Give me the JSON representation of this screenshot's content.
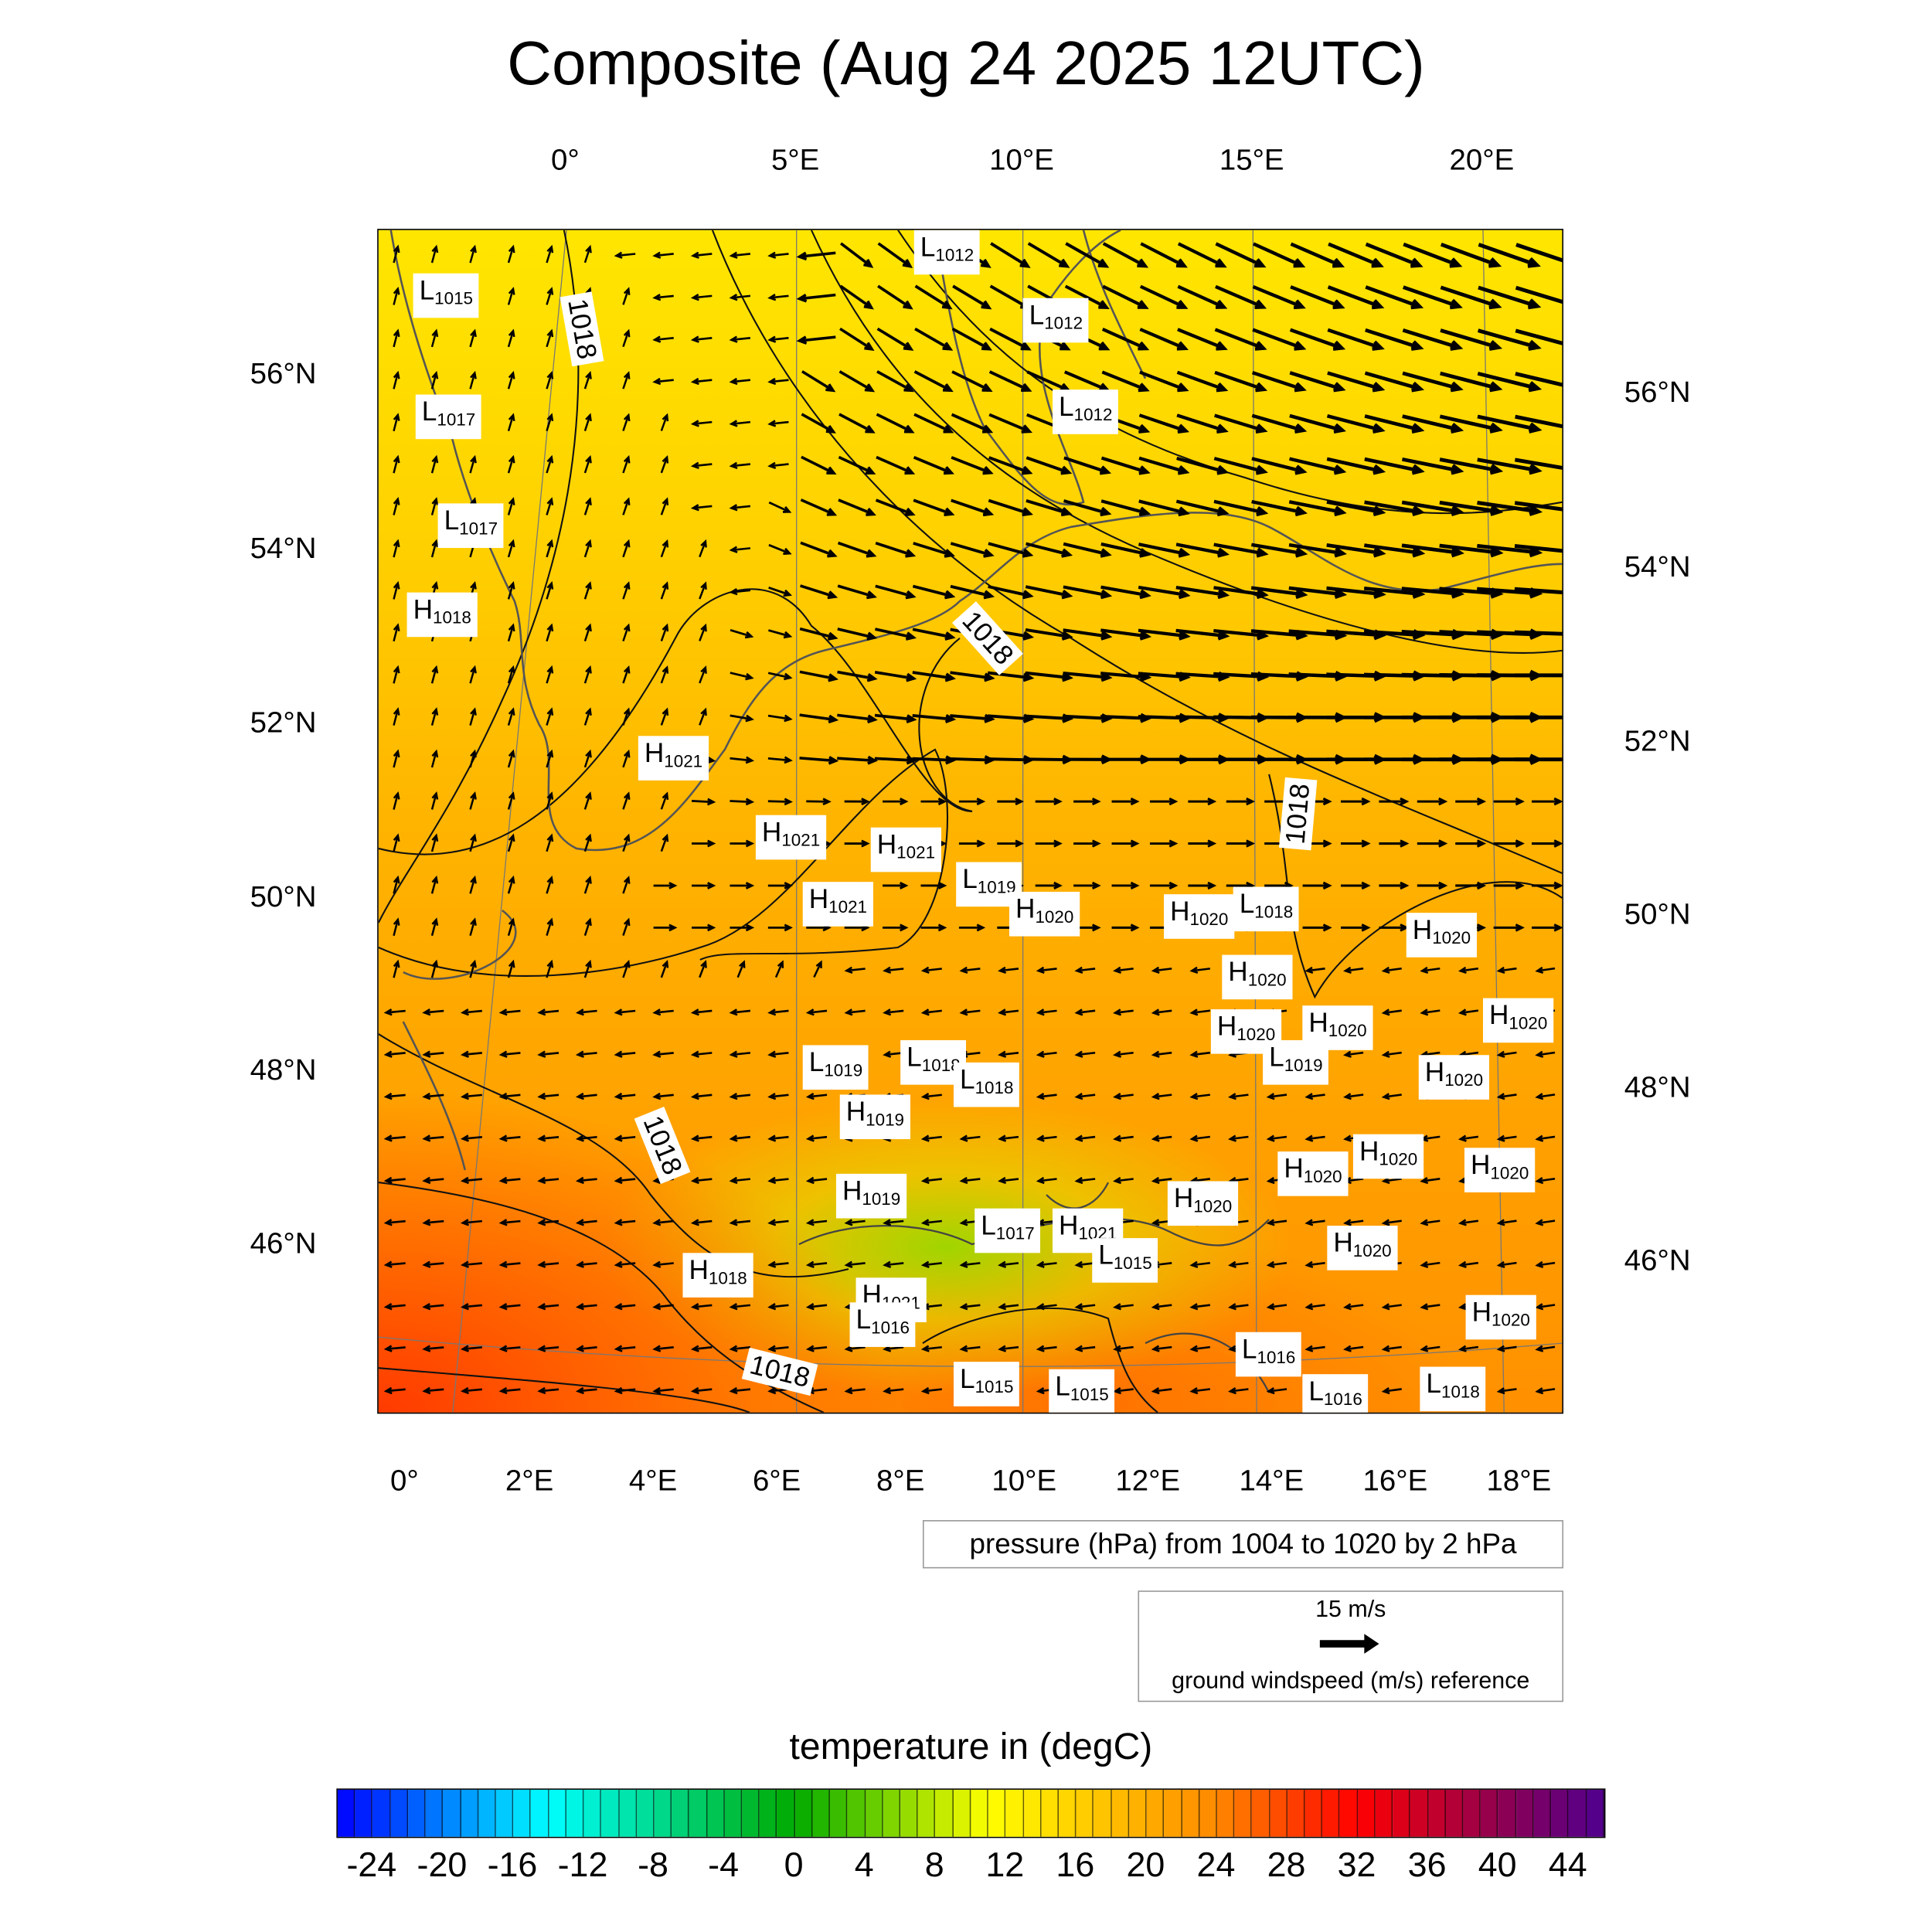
{
  "title": "Composite (Aug 24 2025 12UTC)",
  "axes": {
    "top_lon": [
      "0°",
      "5°E",
      "10°E",
      "15°E",
      "20°E"
    ],
    "bottom_lon": [
      "0°",
      "2°E",
      "4°E",
      "6°E",
      "8°E",
      "10°E",
      "12°E",
      "14°E",
      "16°E",
      "18°E"
    ],
    "left_lat": [
      "56°N",
      "54°N",
      "52°N",
      "50°N",
      "48°N",
      "46°N"
    ],
    "right_lat": [
      "56°N",
      "54°N",
      "52°N",
      "50°N",
      "48°N",
      "46°N"
    ]
  },
  "pressure_centers": [
    {
      "t": "L",
      "v": "1015"
    },
    {
      "t": "L",
      "v": "1017"
    },
    {
      "t": "L",
      "v": "1017"
    },
    {
      "t": "H",
      "v": "1018"
    },
    {
      "t": "L",
      "v": "1012"
    },
    {
      "t": "L",
      "v": "1012"
    },
    {
      "t": "L",
      "v": "1012"
    },
    {
      "t": "H",
      "v": "1021"
    },
    {
      "t": "H",
      "v": "1021"
    },
    {
      "t": "H",
      "v": "1021"
    },
    {
      "t": "H",
      "v": "1021"
    },
    {
      "t": "L",
      "v": "1019"
    },
    {
      "t": "H",
      "v": "1020"
    },
    {
      "t": "H",
      "v": "1020"
    },
    {
      "t": "L",
      "v": "1018"
    },
    {
      "t": "H",
      "v": "1020"
    },
    {
      "t": "H",
      "v": "1020"
    },
    {
      "t": "H",
      "v": "1020"
    },
    {
      "t": "H",
      "v": "1020"
    },
    {
      "t": "L",
      "v": "1019"
    },
    {
      "t": "H",
      "v": "1020"
    },
    {
      "t": "H",
      "v": "1020"
    },
    {
      "t": "L",
      "v": "1019"
    },
    {
      "t": "L",
      "v": "1018"
    },
    {
      "t": "L",
      "v": "1018"
    },
    {
      "t": "H",
      "v": "1019"
    },
    {
      "t": "H",
      "v": "1020"
    },
    {
      "t": "H",
      "v": "1020"
    },
    {
      "t": "H",
      "v": "1020"
    },
    {
      "t": "H",
      "v": "1019"
    },
    {
      "t": "H",
      "v": "1020"
    },
    {
      "t": "L",
      "v": "1017"
    },
    {
      "t": "H",
      "v": "1021"
    },
    {
      "t": "L",
      "v": "1015"
    },
    {
      "t": "H",
      "v": "1018"
    },
    {
      "t": "H",
      "v": "1021"
    },
    {
      "t": "L",
      "v": "1016"
    },
    {
      "t": "H",
      "v": "1020"
    },
    {
      "t": "H",
      "v": "1020"
    },
    {
      "t": "L",
      "v": "1015"
    },
    {
      "t": "L",
      "v": "1015"
    },
    {
      "t": "L",
      "v": "1016"
    },
    {
      "t": "L",
      "v": "1016"
    },
    {
      "t": "L",
      "v": "1018"
    }
  ],
  "contour_labels": [
    "1018",
    "1018",
    "1018",
    "1018",
    "1018"
  ],
  "pressure_legend": "pressure (hPa) from 1004 to 1020 by 2 hPa",
  "wind_legend": {
    "speed": "15 m/s",
    "label": "ground windspeed (m/s) reference"
  },
  "colorbar": {
    "title": "temperature in (degC)",
    "labels": [
      "-24",
      "-20",
      "-16",
      "-12",
      "-8",
      "-4",
      "0",
      "4",
      "8",
      "12",
      "16",
      "20",
      "24",
      "28",
      "32",
      "36",
      "40",
      "44"
    ],
    "min": -26,
    "max": 46,
    "step": 1,
    "stops": [
      [
        -26,
        "#0000ff"
      ],
      [
        -14,
        "#00ffff"
      ],
      [
        0,
        "#00aa00"
      ],
      [
        11,
        "#ffff00"
      ],
      [
        24,
        "#ff8800"
      ],
      [
        32,
        "#ff0000"
      ],
      [
        40,
        "#900050"
      ],
      [
        46,
        "#500090"
      ]
    ]
  }
}
